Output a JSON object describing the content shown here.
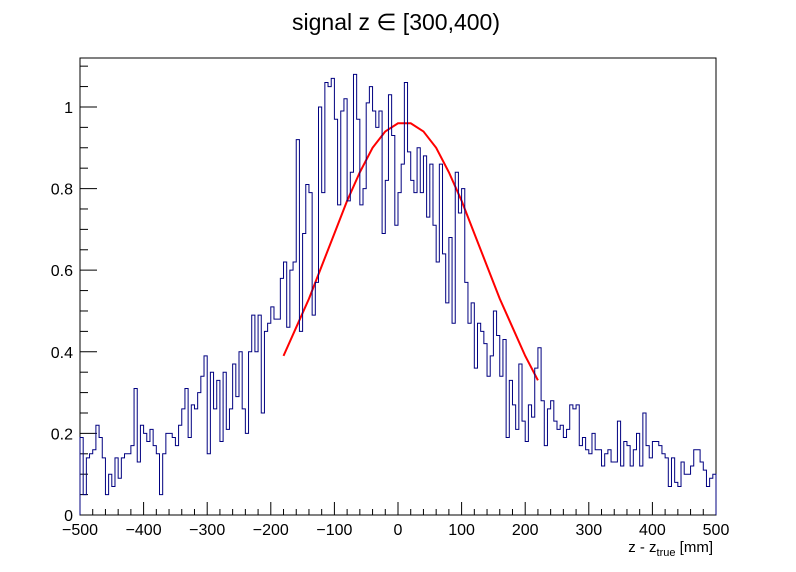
{
  "chart_data": {
    "type": "histogram",
    "title": "signal z ∈ [300,400)",
    "xlabel": {
      "main": "z - z",
      "sub": "true",
      "unit": " [mm]"
    },
    "ylabel": "",
    "xlim": [
      -500,
      500
    ],
    "ylim": [
      0,
      1.12
    ],
    "grid": false,
    "bin_width": 5,
    "x_ticks": [
      -500,
      -400,
      -300,
      -200,
      -100,
      0,
      100,
      200,
      300,
      400,
      500
    ],
    "x_tick_labels": [
      "−500",
      "−400",
      "−300",
      "−200",
      "−100",
      "0",
      "100",
      "200",
      "300",
      "400",
      "500"
    ],
    "y_ticks": [
      0,
      0.2,
      0.4,
      0.6,
      0.8,
      1
    ],
    "y_tick_labels": [
      "0",
      "0.2",
      "0.4",
      "0.6",
      "0.8",
      "1"
    ],
    "series": [
      {
        "style": "step",
        "color": "#000080",
        "values": [
          0.19,
          0.05,
          0.14,
          0.15,
          0.16,
          0.22,
          0.19,
          0.14,
          0.05,
          0.1,
          0.07,
          0.14,
          0.09,
          0.14,
          0.15,
          0.15,
          0.17,
          0.31,
          0.13,
          0.22,
          0.2,
          0.18,
          0.21,
          0.17,
          0.15,
          0.05,
          0.15,
          0.2,
          0.2,
          0.19,
          0.17,
          0.22,
          0.26,
          0.31,
          0.19,
          0.27,
          0.26,
          0.3,
          0.34,
          0.39,
          0.15,
          0.35,
          0.26,
          0.33,
          0.18,
          0.35,
          0.21,
          0.26,
          0.37,
          0.29,
          0.4,
          0.26,
          0.2,
          0.4,
          0.49,
          0.4,
          0.49,
          0.25,
          0.45,
          0.47,
          0.51,
          0.48,
          0.48,
          0.58,
          0.62,
          0.46,
          0.6,
          0.62,
          0.92,
          0.45,
          0.69,
          0.81,
          0.79,
          0.49,
          0.57,
          1.0,
          0.79,
          1.06,
          1.05,
          1.07,
          0.97,
          0.76,
          0.99,
          1.02,
          0.77,
          0.84,
          1.08,
          0.97,
          0.76,
          0.8,
          1.01,
          1.05,
          0.99,
          0.95,
          0.99,
          0.69,
          0.82,
          1.03,
          0.93,
          0.71,
          0.79,
          0.86,
          1.06,
          0.89,
          0.82,
          0.79,
          0.9,
          0.79,
          0.88,
          0.73,
          0.86,
          0.71,
          0.62,
          0.86,
          0.64,
          0.52,
          0.68,
          0.47,
          0.84,
          0.74,
          0.8,
          0.57,
          0.47,
          0.52,
          0.36,
          0.47,
          0.45,
          0.42,
          0.34,
          0.39,
          0.5,
          0.44,
          0.34,
          0.43,
          0.19,
          0.33,
          0.27,
          0.21,
          0.37,
          0.23,
          0.18,
          0.27,
          0.24,
          0.36,
          0.41,
          0.28,
          0.17,
          0.26,
          0.28,
          0.23,
          0.21,
          0.22,
          0.19,
          0.21,
          0.27,
          0.26,
          0.27,
          0.17,
          0.19,
          0.16,
          0.15,
          0.2,
          0.16,
          0.16,
          0.12,
          0.15,
          0.16,
          0.13,
          0.13,
          0.23,
          0.12,
          0.18,
          0.17,
          0.12,
          0.16,
          0.2,
          0.12,
          0.25,
          0.17,
          0.14,
          0.18,
          0.18,
          0.17,
          0.15,
          0.14,
          0.07,
          0.14,
          0.08,
          0.07,
          0.13,
          0.1,
          0.1,
          0.12,
          0.16,
          0.16,
          0.13,
          0.11,
          0.07,
          0.09,
          0.1
        ]
      },
      {
        "style": "line",
        "color": "#ff0000",
        "x": [
          -180,
          -160,
          -140,
          -120,
          -100,
          -80,
          -60,
          -40,
          -20,
          0,
          20,
          40,
          60,
          80,
          100,
          120,
          140,
          160,
          180,
          200,
          220
        ],
        "values": [
          0.39,
          0.46,
          0.53,
          0.61,
          0.69,
          0.77,
          0.84,
          0.9,
          0.94,
          0.96,
          0.96,
          0.94,
          0.9,
          0.84,
          0.77,
          0.69,
          0.61,
          0.53,
          0.46,
          0.39,
          0.33
        ]
      }
    ]
  }
}
